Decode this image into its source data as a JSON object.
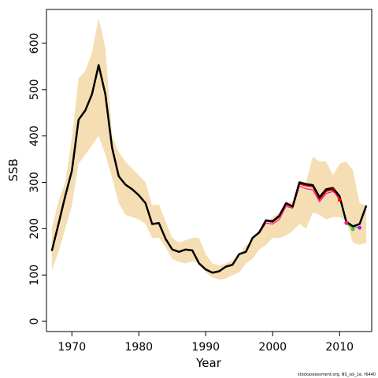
{
  "chart_data": {
    "type": "line",
    "xlabel": "Year",
    "ylabel": "SSB",
    "xlim": [
      1966.2,
      2014.8
    ],
    "ylim": [
      -22,
      673
    ],
    "x_ticks": [
      1970,
      1980,
      1990,
      2000,
      2010
    ],
    "y_ticks": [
      0,
      100,
      200,
      300,
      400,
      500,
      600
    ],
    "grid": false,
    "legend": "none",
    "colors": {
      "band": "#f5deb3",
      "final": "#000000",
      "retro_1": "#ff0000",
      "retro_2": "#ff1493",
      "retro_3": "#32cd32",
      "retro_4": "#a020f0",
      "retro_5": "#8b0000"
    },
    "years": [
      1967,
      1968,
      1969,
      1970,
      1971,
      1972,
      1973,
      1974,
      1975,
      1976,
      1977,
      1978,
      1979,
      1980,
      1981,
      1982,
      1983,
      1984,
      1985,
      1986,
      1987,
      1988,
      1989,
      1990,
      1991,
      1992,
      1993,
      1994,
      1995,
      1996,
      1997,
      1998,
      1999,
      2000,
      2001,
      2002,
      2003,
      2004,
      2005,
      2006,
      2007,
      2008,
      2009,
      2010,
      2011,
      2012,
      2013,
      2014
    ],
    "band_lower": [
      110,
      150,
      200,
      250,
      340,
      360,
      380,
      400,
      360,
      310,
      255,
      230,
      225,
      220,
      210,
      180,
      180,
      160,
      135,
      128,
      125,
      130,
      125,
      105,
      95,
      90,
      92,
      100,
      105,
      125,
      135,
      155,
      165,
      180,
      180,
      185,
      195,
      210,
      200,
      235,
      230,
      220,
      225,
      225,
      215,
      170,
      165,
      170
    ],
    "band_upper": [
      200,
      260,
      300,
      395,
      525,
      540,
      580,
      655,
      590,
      400,
      365,
      345,
      330,
      315,
      300,
      250,
      252,
      215,
      180,
      170,
      175,
      180,
      180,
      145,
      125,
      120,
      125,
      132,
      140,
      165,
      175,
      200,
      210,
      225,
      235,
      255,
      260,
      300,
      300,
      355,
      345,
      345,
      315,
      340,
      345,
      325,
      255,
      250
    ],
    "series": [
      {
        "name": "",
        "color_key": "final",
        "x_start": 1967,
        "values": [
          152,
          210,
          270,
          325,
          435,
          455,
          490,
          553,
          490,
          375,
          313,
          295,
          285,
          272,
          255,
          210,
          212,
          178,
          155,
          150,
          155,
          153,
          125,
          112,
          105,
          108,
          118,
          122,
          145,
          150,
          180,
          192,
          218,
          216,
          228,
          255,
          248,
          300,
          296,
          294,
          268,
          285,
          288,
          270,
          215,
          205,
          210,
          250
        ]
      },
      {
        "name": "",
        "color_key": "retro_1",
        "x_start": 1967,
        "values": [
          152,
          210,
          270,
          325,
          435,
          455,
          490,
          553,
          490,
          375,
          313,
          295,
          285,
          272,
          255,
          210,
          212,
          178,
          155,
          150,
          155,
          153,
          125,
          112,
          105,
          108,
          118,
          122,
          145,
          150,
          180,
          192,
          216,
          214,
          225,
          252,
          246,
          296,
          292,
          290,
          262,
          280,
          284,
          262
        ]
      },
      {
        "name": "",
        "color_key": "retro_2",
        "x_start": 1967,
        "values": [
          152,
          210,
          270,
          325,
          435,
          455,
          490,
          553,
          490,
          375,
          313,
          295,
          285,
          272,
          255,
          210,
          212,
          178,
          155,
          150,
          155,
          153,
          125,
          112,
          105,
          108,
          118,
          122,
          145,
          150,
          180,
          190,
          212,
          210,
          220,
          248,
          244,
          292,
          286,
          284,
          258,
          276,
          280,
          268,
          212
        ]
      },
      {
        "name": "",
        "color_key": "retro_3",
        "x_start": 1967,
        "values": [
          152,
          210,
          270,
          325,
          435,
          455,
          490,
          553,
          490,
          375,
          313,
          295,
          285,
          272,
          255,
          210,
          212,
          178,
          155,
          150,
          155,
          153,
          125,
          112,
          105,
          108,
          118,
          122,
          145,
          150,
          180,
          192,
          218,
          216,
          228,
          255,
          248,
          300,
          295,
          293,
          267,
          284,
          287,
          268,
          212,
          199
        ]
      },
      {
        "name": "",
        "color_key": "retro_4",
        "x_start": 1967,
        "values": [
          152,
          210,
          270,
          325,
          435,
          455,
          490,
          553,
          490,
          375,
          313,
          295,
          285,
          272,
          255,
          210,
          212,
          178,
          155,
          150,
          155,
          153,
          125,
          112,
          105,
          108,
          118,
          122,
          145,
          150,
          180,
          192,
          218,
          216,
          228,
          255,
          248,
          300,
          296,
          294,
          268,
          285,
          288,
          270,
          215,
          205,
          202
        ]
      },
      {
        "name": "",
        "color_key": "retro_5",
        "x_start": 1967,
        "values": [
          152,
          210,
          270,
          325,
          435,
          455,
          490,
          553,
          490,
          375,
          313,
          295,
          285,
          272,
          255,
          210,
          212,
          178,
          155,
          150,
          155,
          153,
          125,
          112,
          105,
          108,
          118,
          122,
          145,
          150,
          180,
          192,
          216,
          214,
          226,
          253,
          247,
          298,
          294,
          292,
          265,
          282,
          285
        ]
      }
    ],
    "endpoints": [
      {
        "x": 2010,
        "y": 262,
        "color_key": "retro_1"
      },
      {
        "x": 2011,
        "y": 212,
        "color_key": "retro_2"
      },
      {
        "x": 2012,
        "y": 199,
        "color_key": "retro_3"
      },
      {
        "x": 2013,
        "y": 202,
        "color_key": "retro_4"
      },
      {
        "x": 2009,
        "y": 285,
        "color_key": "retro_5"
      }
    ]
  },
  "footnote": "stockassessment.org, NS_sol_1e, r6440"
}
